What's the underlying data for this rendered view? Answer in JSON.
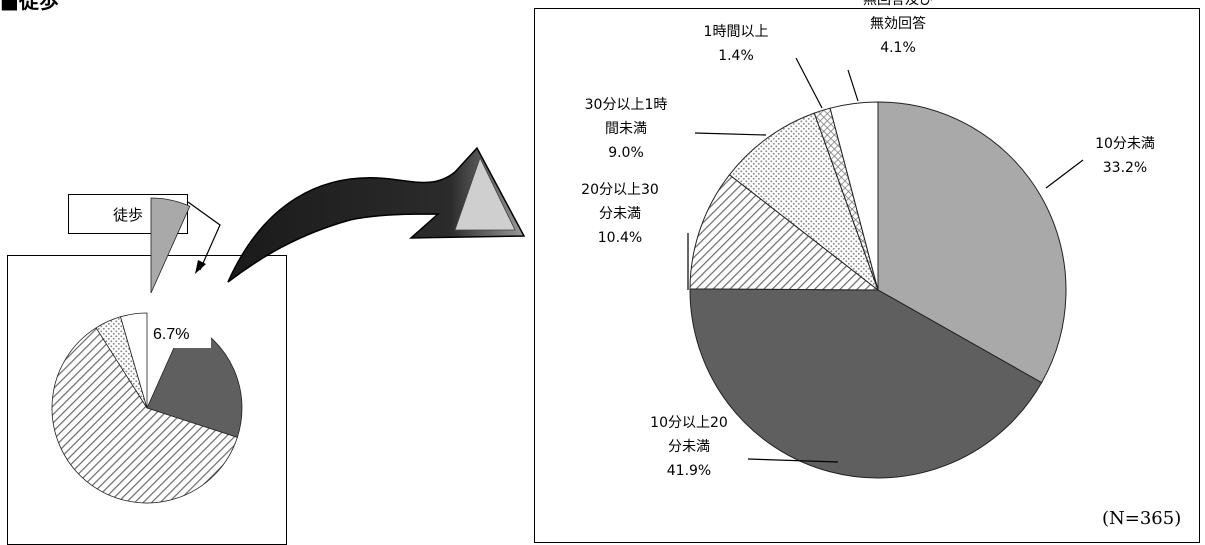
{
  "page": {
    "title": "■徒歩"
  },
  "callout": {
    "label": "徒歩"
  },
  "small_chart": {
    "highlight_value_label": "6.7%",
    "slices": [
      {
        "name": "徒歩",
        "value": 6.7,
        "fill": "gray"
      },
      {
        "name": "",
        "value": 23.3,
        "fill": "dark"
      },
      {
        "name": "",
        "value": 61.0,
        "fill": "hatch"
      },
      {
        "name": "",
        "value": 4.5,
        "fill": "dots"
      },
      {
        "name": "",
        "value": 4.5,
        "fill": "white"
      }
    ]
  },
  "chart_data": {
    "type": "pie",
    "title": "",
    "note": "(N=365)",
    "slices": [
      {
        "label_lines": [
          "10分未満"
        ],
        "value_label": "33.2%",
        "value": 33.2,
        "fill": "gray"
      },
      {
        "label_lines": [
          "10分以上20",
          "分未満"
        ],
        "value_label": "41.9%",
        "value": 41.9,
        "fill": "dark"
      },
      {
        "label_lines": [
          "20分以上30",
          "分未満"
        ],
        "value_label": "10.4%",
        "value": 10.4,
        "fill": "hatch"
      },
      {
        "label_lines": [
          "30分以上1時",
          "間未満"
        ],
        "value_label": "9.0%",
        "value": 9.0,
        "fill": "dots"
      },
      {
        "label_lines": [
          "1時間以上"
        ],
        "value_label": "1.4%",
        "value": 1.4,
        "fill": "crosshatch"
      },
      {
        "label_lines": [
          "無回答及び",
          "無効回答"
        ],
        "value_label": "4.1%",
        "value": 4.1,
        "fill": "white"
      }
    ]
  },
  "colors": {
    "gray": "#a9a9a9",
    "dark": "#5f5f5f",
    "hatch_bg": "#ffffff",
    "hatch_line": "#6a6a6a",
    "dots": "#8a8a8a",
    "white": "#ffffff",
    "outline": "#222222",
    "arrow": "#111111"
  }
}
